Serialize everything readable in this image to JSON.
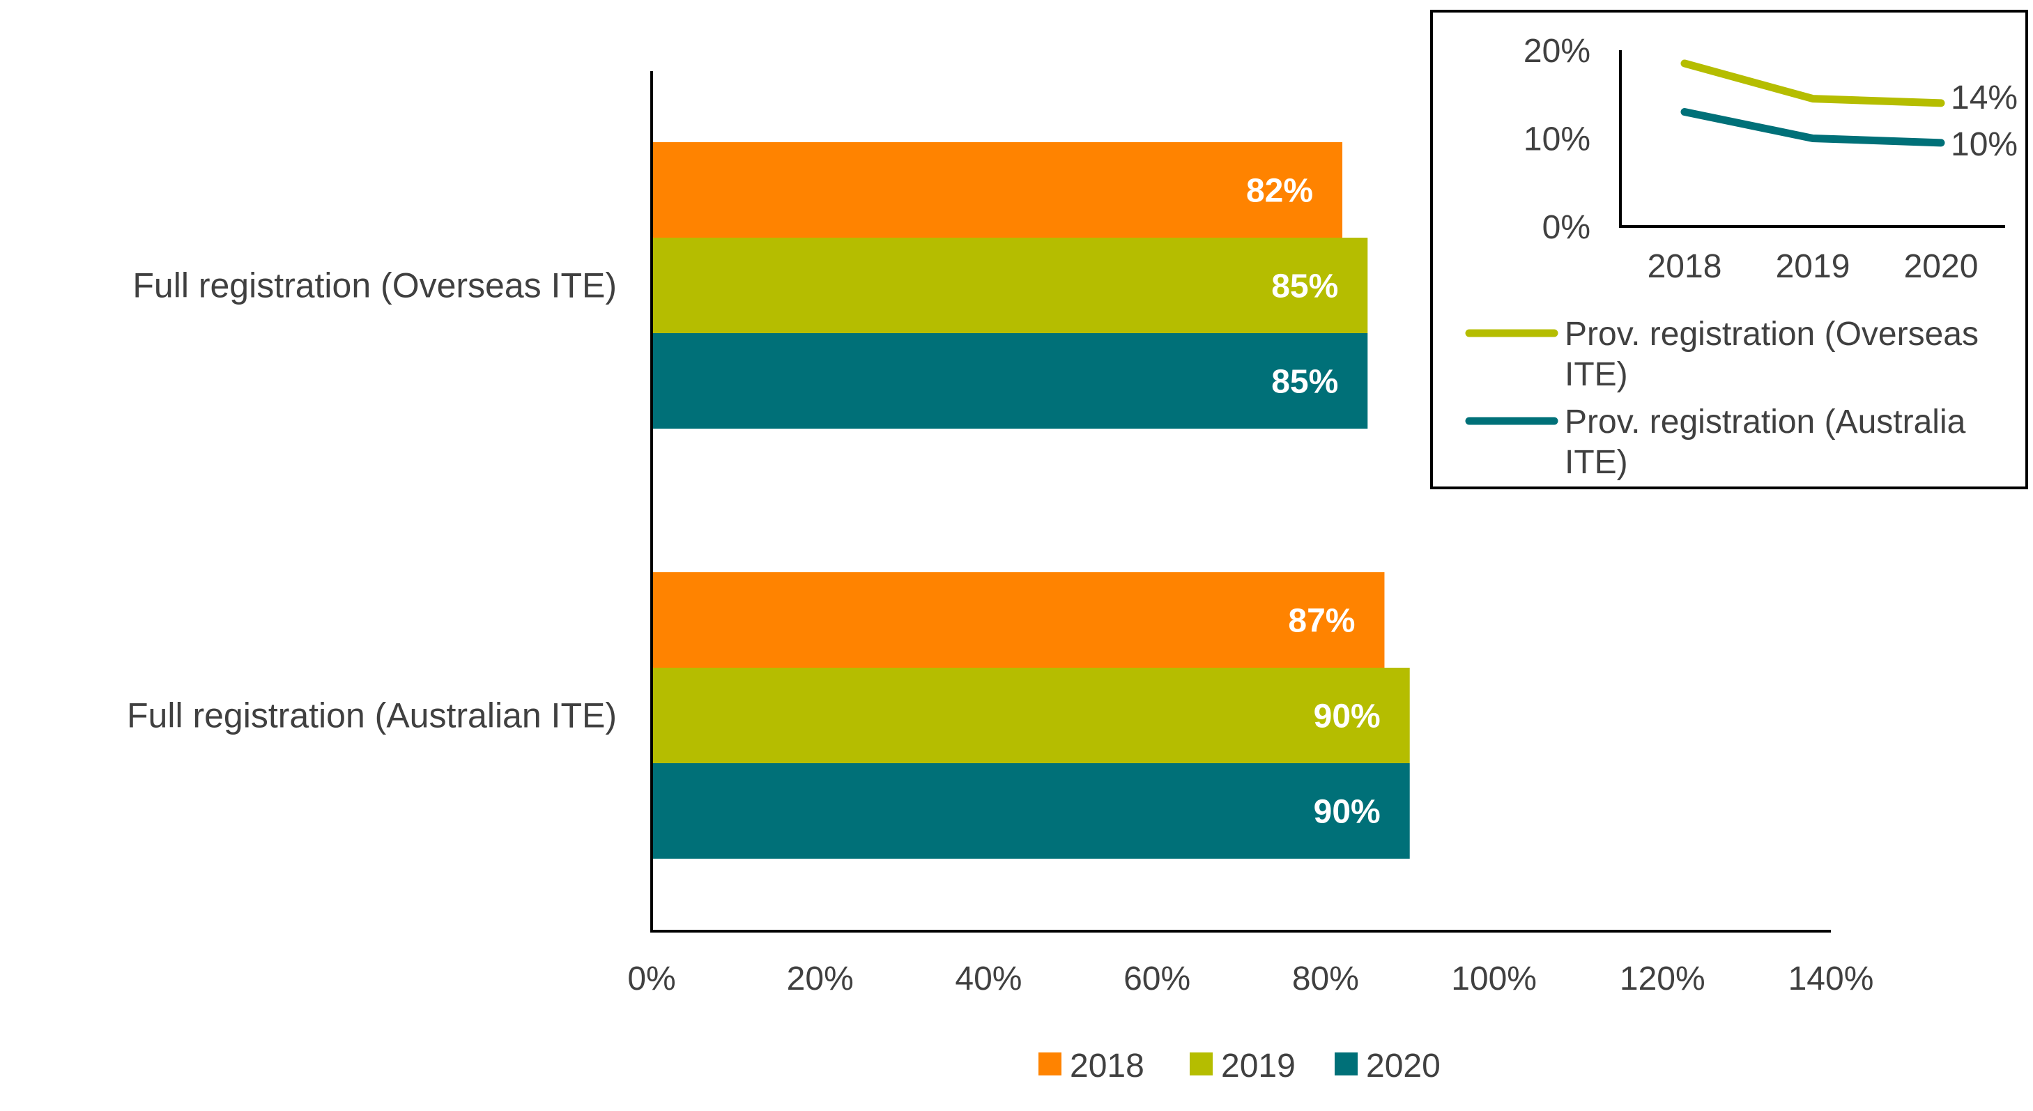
{
  "chart_data": [
    {
      "type": "bar",
      "orientation": "horizontal",
      "categories": [
        "Full registration (Overseas ITE)",
        "Full registration (Australian ITE)"
      ],
      "series": [
        {
          "name": "2018",
          "values": [
            82,
            87
          ],
          "labels": [
            "82%",
            "87%"
          ],
          "color": "#FF8300"
        },
        {
          "name": "2019",
          "values": [
            85,
            90
          ],
          "labels": [
            "85%",
            "90%"
          ],
          "color": "#B5BD00"
        },
        {
          "name": "2020",
          "values": [
            85,
            90
          ],
          "labels": [
            "85%",
            "90%"
          ],
          "color": "#007078"
        }
      ],
      "x_ticks": [
        "0%",
        "20%",
        "40%",
        "60%",
        "80%",
        "100%",
        "120%",
        "140%"
      ],
      "xlim": [
        0,
        140
      ],
      "legend": {
        "placement": "bottom",
        "entries": [
          "2018",
          "2019",
          "2020"
        ]
      },
      "grid": false
    },
    {
      "type": "line",
      "placement": "inset-top-right",
      "categories": [
        "2018",
        "2019",
        "2020"
      ],
      "series": [
        {
          "name": "Prov. registration (Overseas ITE)",
          "legend_lines": [
            "Prov. registration (Overseas",
            "ITE)"
          ],
          "values": [
            18.5,
            14.5,
            14
          ],
          "end_label": "14%",
          "color": "#B5BD00"
        },
        {
          "name": "Prov. registration (Australia ITE)",
          "legend_lines": [
            "Prov. registration (Australia",
            "ITE)"
          ],
          "values": [
            13,
            10,
            9.5
          ],
          "end_label": "10%",
          "color": "#007078"
        }
      ],
      "y_ticks": [
        "0%",
        "10%",
        "20%"
      ],
      "ylim": [
        0,
        20
      ],
      "legend": {
        "placement": "bottom"
      },
      "grid": false
    }
  ]
}
